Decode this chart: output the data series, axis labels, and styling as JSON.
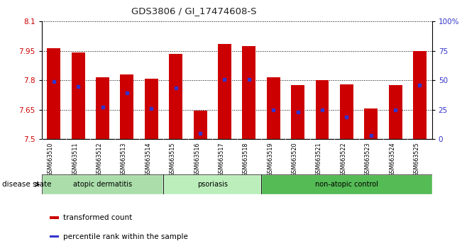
{
  "title": "GDS3806 / GI_17474608-S",
  "samples": [
    "GSM663510",
    "GSM663511",
    "GSM663512",
    "GSM663513",
    "GSM663514",
    "GSM663515",
    "GSM663516",
    "GSM663517",
    "GSM663518",
    "GSM663519",
    "GSM663520",
    "GSM663521",
    "GSM663522",
    "GSM663523",
    "GSM663524",
    "GSM663525"
  ],
  "bar_values": [
    7.965,
    7.94,
    7.815,
    7.83,
    7.81,
    7.935,
    7.645,
    7.985,
    7.975,
    7.815,
    7.775,
    7.8,
    7.78,
    7.655,
    7.775,
    7.95
  ],
  "percentile_values": [
    7.795,
    7.77,
    7.665,
    7.735,
    7.658,
    7.76,
    7.53,
    7.805,
    7.805,
    7.648,
    7.64,
    7.648,
    7.615,
    7.52,
    7.648,
    7.775
  ],
  "ymin": 7.5,
  "ymax": 8.1,
  "yticks": [
    7.5,
    7.65,
    7.8,
    7.95,
    8.1
  ],
  "ytick_labels": [
    "7.5",
    "7.65",
    "7.8",
    "7.95",
    "8.1"
  ],
  "right_yticks": [
    0,
    25,
    50,
    75,
    100
  ],
  "right_ytick_labels": [
    "0",
    "25",
    "50",
    "75",
    "100%"
  ],
  "bar_color": "#cc0000",
  "percentile_color": "#3333cc",
  "bar_width": 0.55,
  "group_spans": [
    {
      "label": "atopic dermatitis",
      "start": 0,
      "end": 4,
      "color": "#aaddaa"
    },
    {
      "label": "psoriasis",
      "start": 5,
      "end": 8,
      "color": "#bbeebb"
    },
    {
      "label": "non-atopic control",
      "start": 9,
      "end": 15,
      "color": "#55bb55"
    }
  ],
  "disease_state_label": "disease state",
  "legend_items": [
    {
      "label": "transformed count",
      "color": "#cc0000"
    },
    {
      "label": "percentile rank within the sample",
      "color": "#3333cc"
    }
  ],
  "grid_color": "#000000",
  "background_color": "#ffffff",
  "tick_label_color_left": "#cc0000",
  "tick_label_color_right": "#3333cc",
  "xticklabel_bg": "#d8d8d8"
}
